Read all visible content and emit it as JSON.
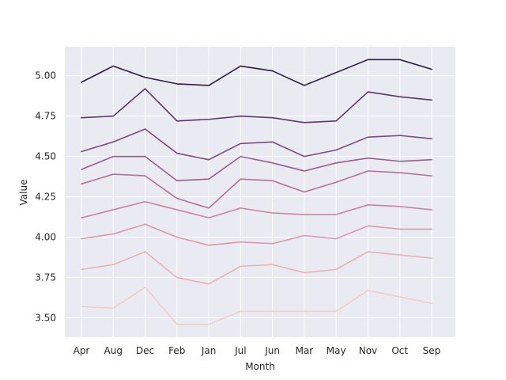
{
  "chart_data": {
    "type": "line",
    "title": "",
    "xlabel": "Month",
    "ylabel": "Value",
    "categories": [
      "Apr",
      "Aug",
      "Dec",
      "Feb",
      "Jan",
      "Jul",
      "Jun",
      "Mar",
      "May",
      "Nov",
      "Oct",
      "Sep"
    ],
    "ylim": [
      3.38,
      5.18
    ],
    "yticks": [
      3.5,
      3.75,
      4.0,
      4.25,
      4.5,
      4.75,
      5.0
    ],
    "ytick_labels": [
      "3.50",
      "3.75",
      "4.00",
      "4.25",
      "4.50",
      "4.75",
      "5.00"
    ],
    "grid": true,
    "legend": "none",
    "background_color": "#eaeaf2",
    "series": [
      {
        "color": "#f1cdc7",
        "values": [
          3.57,
          3.56,
          3.69,
          3.46,
          3.46,
          3.54,
          3.54,
          3.54,
          3.54,
          3.67,
          3.63,
          3.59
        ]
      },
      {
        "color": "#e6b2b6",
        "values": [
          3.8,
          3.83,
          3.91,
          3.75,
          3.71,
          3.82,
          3.83,
          3.78,
          3.8,
          3.91,
          3.89,
          3.87
        ]
      },
      {
        "color": "#d999a7",
        "values": [
          3.99,
          4.02,
          4.08,
          4.0,
          3.95,
          3.97,
          3.96,
          4.01,
          3.99,
          4.07,
          4.05,
          4.05
        ]
      },
      {
        "color": "#c9859e",
        "values": [
          4.12,
          4.17,
          4.22,
          4.17,
          4.12,
          4.18,
          4.15,
          4.14,
          4.14,
          4.2,
          4.19,
          4.17
        ]
      },
      {
        "color": "#b27197",
        "values": [
          4.33,
          4.39,
          4.38,
          4.24,
          4.18,
          4.36,
          4.35,
          4.28,
          4.34,
          4.41,
          4.4,
          4.38
        ]
      },
      {
        "color": "#9b5d8d",
        "values": [
          4.42,
          4.5,
          4.5,
          4.35,
          4.36,
          4.5,
          4.46,
          4.41,
          4.46,
          4.49,
          4.47,
          4.48
        ]
      },
      {
        "color": "#7c4a7e",
        "values": [
          4.53,
          4.59,
          4.67,
          4.52,
          4.48,
          4.58,
          4.59,
          4.5,
          4.54,
          4.62,
          4.63,
          4.61
        ]
      },
      {
        "color": "#5c3868",
        "values": [
          4.74,
          4.75,
          4.92,
          4.72,
          4.73,
          4.75,
          4.74,
          4.71,
          4.72,
          4.9,
          4.87,
          4.85
        ]
      },
      {
        "color": "#2d1e3e",
        "values": [
          4.96,
          5.06,
          4.99,
          4.95,
          4.94,
          5.06,
          5.03,
          4.94,
          5.02,
          5.1,
          5.1,
          5.04
        ]
      }
    ]
  }
}
